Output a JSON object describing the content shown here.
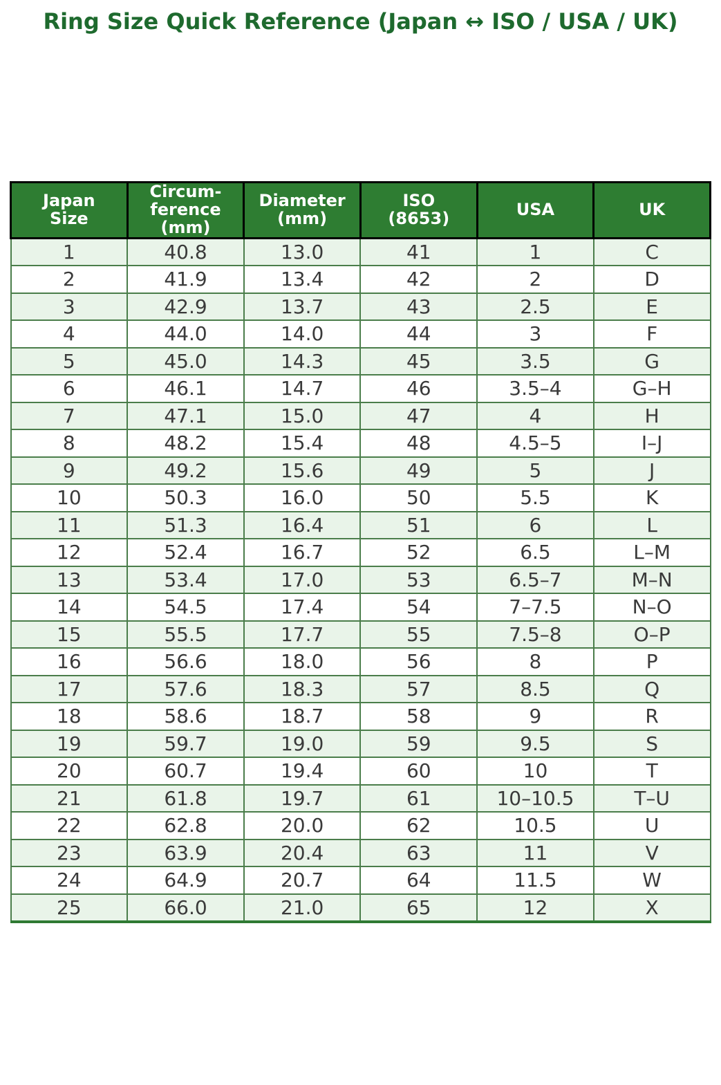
{
  "title": "Ring Size Quick Reference (Japan ↔ ISO / USA / UK)",
  "chart_data": {
    "type": "table",
    "title": "Ring Size Quick Reference (Japan ↔ ISO / USA / UK)",
    "columns": [
      "Japan\nSize",
      "Circum-\nference\n(mm)",
      "Diameter\n(mm)",
      "ISO\n(8653)",
      "USA",
      "UK"
    ],
    "rows": [
      [
        "1",
        "40.8",
        "13.0",
        "41",
        "1",
        "C"
      ],
      [
        "2",
        "41.9",
        "13.4",
        "42",
        "2",
        "D"
      ],
      [
        "3",
        "42.9",
        "13.7",
        "43",
        "2.5",
        "E"
      ],
      [
        "4",
        "44.0",
        "14.0",
        "44",
        "3",
        "F"
      ],
      [
        "5",
        "45.0",
        "14.3",
        "45",
        "3.5",
        "G"
      ],
      [
        "6",
        "46.1",
        "14.7",
        "46",
        "3.5–4",
        "G–H"
      ],
      [
        "7",
        "47.1",
        "15.0",
        "47",
        "4",
        "H"
      ],
      [
        "8",
        "48.2",
        "15.4",
        "48",
        "4.5–5",
        "I–J"
      ],
      [
        "9",
        "49.2",
        "15.6",
        "49",
        "5",
        "J"
      ],
      [
        "10",
        "50.3",
        "16.0",
        "50",
        "5.5",
        "K"
      ],
      [
        "11",
        "51.3",
        "16.4",
        "51",
        "6",
        "L"
      ],
      [
        "12",
        "52.4",
        "16.7",
        "52",
        "6.5",
        "L–M"
      ],
      [
        "13",
        "53.4",
        "17.0",
        "53",
        "6.5–7",
        "M–N"
      ],
      [
        "14",
        "54.5",
        "17.4",
        "54",
        "7–7.5",
        "N–O"
      ],
      [
        "15",
        "55.5",
        "17.7",
        "55",
        "7.5–8",
        "O–P"
      ],
      [
        "16",
        "56.6",
        "18.0",
        "56",
        "8",
        "P"
      ],
      [
        "17",
        "57.6",
        "18.3",
        "57",
        "8.5",
        "Q"
      ],
      [
        "18",
        "58.6",
        "18.7",
        "58",
        "9",
        "R"
      ],
      [
        "19",
        "59.7",
        "19.0",
        "59",
        "9.5",
        "S"
      ],
      [
        "20",
        "60.7",
        "19.4",
        "60",
        "10",
        "T"
      ],
      [
        "21",
        "61.8",
        "19.7",
        "61",
        "10–10.5",
        "T–U"
      ],
      [
        "22",
        "62.8",
        "20.0",
        "62",
        "10.5",
        "U"
      ],
      [
        "23",
        "63.9",
        "20.4",
        "63",
        "11",
        "V"
      ],
      [
        "24",
        "64.9",
        "20.7",
        "64",
        "11.5",
        "W"
      ],
      [
        "25",
        "66.0",
        "21.0",
        "65",
        "12",
        "X"
      ]
    ],
    "layout_hints": {
      "alternating_rows": "odd rows light green, even rows white",
      "header_position": "top",
      "grid": true
    }
  },
  "colors": {
    "header-bg": "#2e7d32",
    "header-text": "#ffffff",
    "title-color": "#1e6a2e",
    "row-alt-bg": "#e9f4e9",
    "row-bg": "#ffffff",
    "grid-color": "#4a7d4a",
    "header-border": "#000000",
    "body-text": "#3a3a3a"
  }
}
